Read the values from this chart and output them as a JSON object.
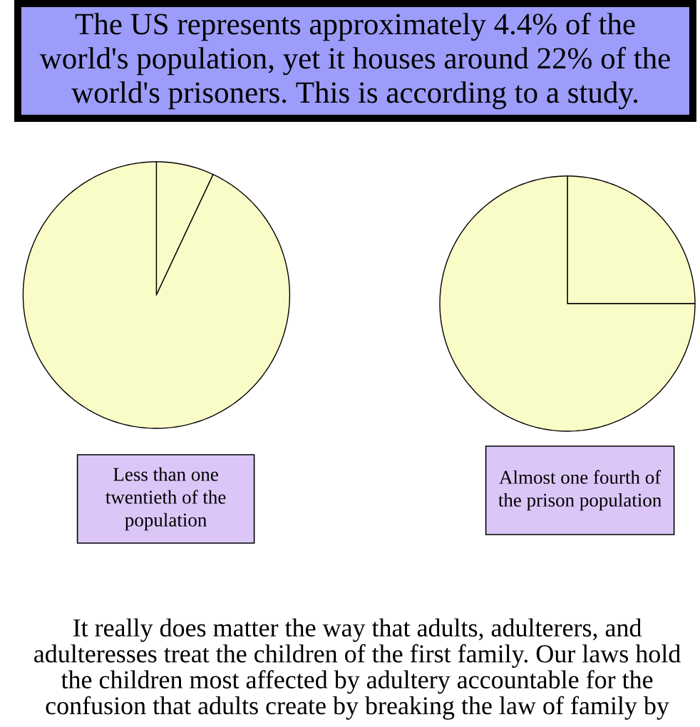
{
  "chart_data": [
    {
      "type": "other",
      "title": "The US represents approximately 4.4% of the world's population, yet it houses around 22% of the world's prisoners. This is according to a study."
    },
    {
      "type": "pie",
      "categories": [
        null,
        null
      ],
      "values": [
        7,
        93
      ],
      "colors": [
        "#fafcc8",
        "#fafcc8"
      ],
      "annotations": [
        "Less than one twentieth of the population"
      ]
    },
    {
      "type": "pie",
      "categories": [
        null,
        null
      ],
      "values": [
        25,
        75
      ],
      "colors": [
        "#fafcc8",
        "#fafcc8"
      ],
      "annotations": [
        "Almost one fourth of the prison population"
      ]
    },
    {
      "type": "other",
      "annotations": [
        "It really does matter the way that adults, adulterers, and adulteresses treat the children of the first family. Our laws hold the children most affected by adultery accountable for the confusion that adults create by breaking the law of family by"
      ]
    }
  ]
}
